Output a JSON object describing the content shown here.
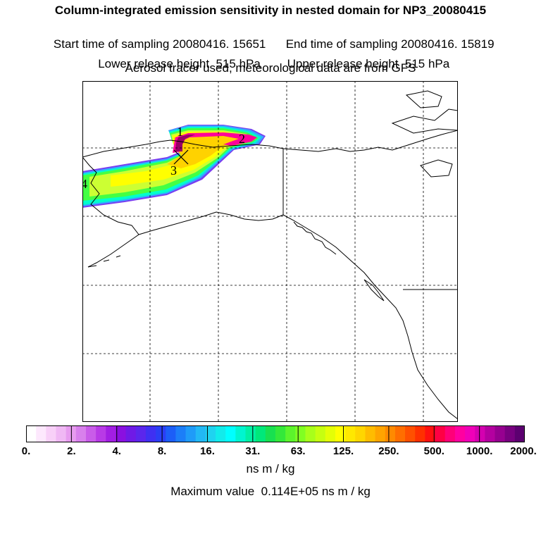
{
  "header": {
    "title": "Column-integrated emission sensitivity in nested domain for NP3_20080415",
    "start_label": "Start time of sampling 20080416. 15651",
    "end_label": "End time of sampling 20080416. 15819",
    "lower_label": "Lower release height  515 hPa",
    "upper_label": "Upper release height  515 hPa",
    "tracer_note": "Aerosol tracer used, meteorological data are from GFS"
  },
  "map": {
    "point_labels": [
      "1",
      "2",
      "3",
      "4"
    ],
    "plume_colors": [
      "#ffd200",
      "#ffff00",
      "#ccff33",
      "#44ff44",
      "#00ffcc",
      "#33aaff",
      "#cc66ff",
      "#ff0099",
      "#990066"
    ]
  },
  "colorbar": {
    "tick_labels": [
      "0.",
      "2.",
      "4.",
      "8.",
      "16.",
      "31.",
      "63.",
      "125.",
      "250.",
      "500.",
      "1000.",
      "2000."
    ],
    "unit": "ns m / kg",
    "max_value_text": "Maximum value  0.114E+05 ns m / kg",
    "colors": [
      "#ffffff",
      "#fde8fd",
      "#f8d0f8",
      "#f0b8f4",
      "#e79cef",
      "#d880ec",
      "#c95ce9",
      "#b83ae6",
      "#a21ee3",
      "#8a10e0",
      "#6f1ae6",
      "#5b26ec",
      "#3f30f2",
      "#2a3ef5",
      "#1c5ef7",
      "#1c7ef8",
      "#1f9bf8",
      "#22b8f5",
      "#1fd3f0",
      "#12ebeb",
      "#00ffff",
      "#00f5d0",
      "#00f0a4",
      "#00e87a",
      "#18e050",
      "#34e83a",
      "#5cf42c",
      "#80ff22",
      "#a8ff1a",
      "#c6ff10",
      "#e4ff06",
      "#ffff00",
      "#ffe800",
      "#ffd600",
      "#ffbc00",
      "#ffa400",
      "#ff8a00",
      "#ff6e00",
      "#ff5000",
      "#ff3000",
      "#ff1010",
      "#ff0044",
      "#ff0078",
      "#ff00a0",
      "#f000b8",
      "#d400b0",
      "#b400a0",
      "#960090",
      "#780080",
      "#5c0070"
    ]
  }
}
